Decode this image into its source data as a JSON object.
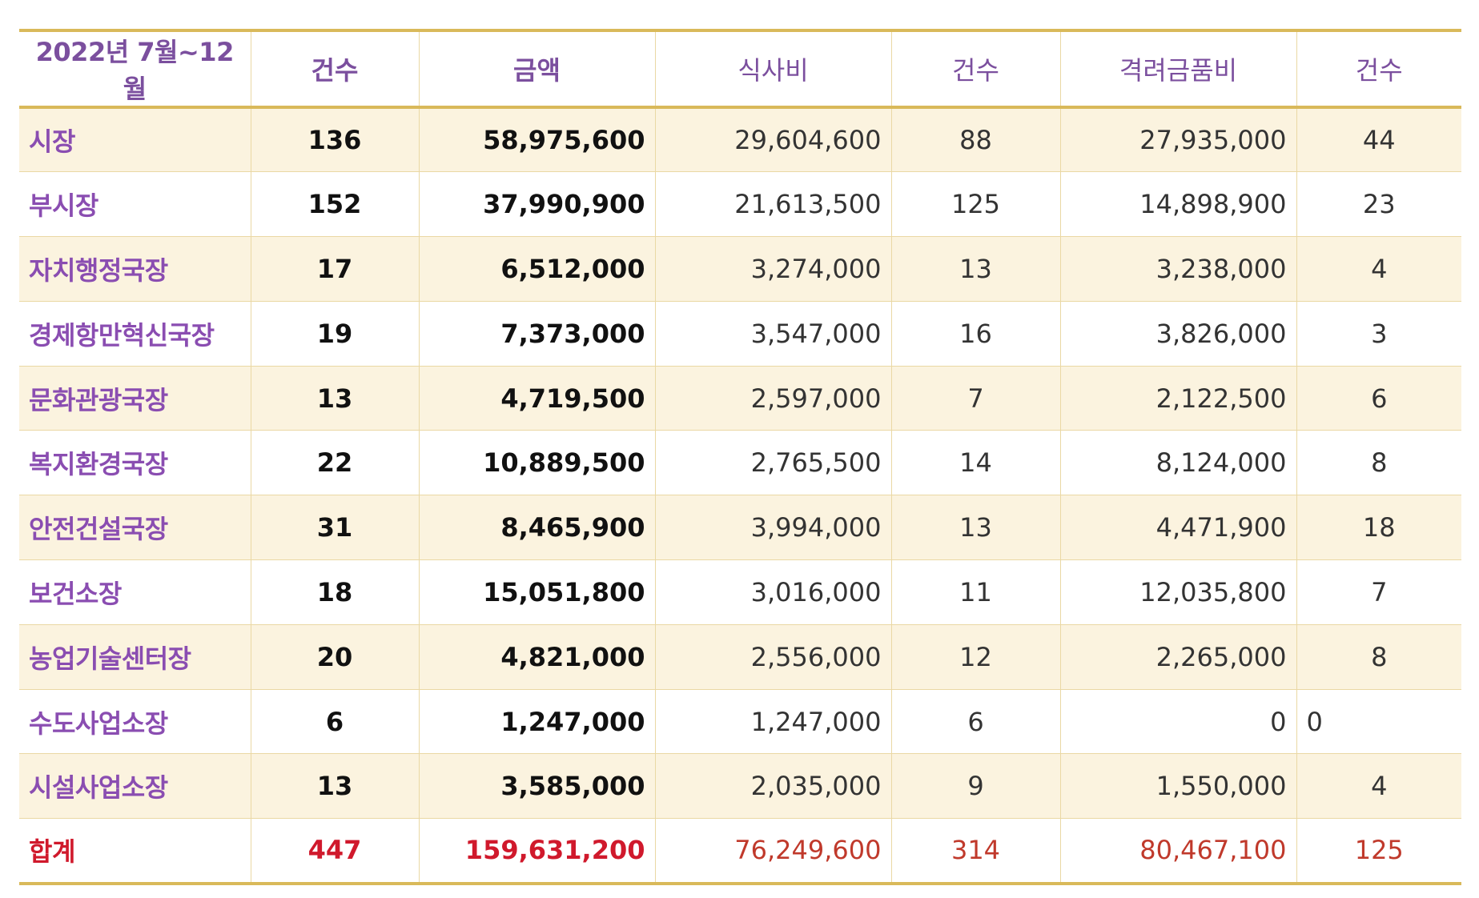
{
  "header": {
    "period": "2022년 7월~12월",
    "count1": "건수",
    "amount": "금액",
    "meal": "식사비",
    "count2": "건수",
    "gift": "격려금품비",
    "count3": "건수"
  },
  "rows": [
    {
      "name": "시장",
      "count": "136",
      "amount": "58,975,600",
      "meal": "29,604,600",
      "meal_count": "88",
      "gift": "27,935,000",
      "gift_count": "44"
    },
    {
      "name": "부시장",
      "count": "152",
      "amount": "37,990,900",
      "meal": "21,613,500",
      "meal_count": "125",
      "gift": "14,898,900",
      "gift_count": "23"
    },
    {
      "name": "자치행정국장",
      "count": "17",
      "amount": "6,512,000",
      "meal": "3,274,000",
      "meal_count": "13",
      "gift": "3,238,000",
      "gift_count": "4"
    },
    {
      "name": "경제항만혁신국장",
      "count": "19",
      "amount": "7,373,000",
      "meal": "3,547,000",
      "meal_count": "16",
      "gift": "3,826,000",
      "gift_count": "3"
    },
    {
      "name": "문화관광국장",
      "count": "13",
      "amount": "4,719,500",
      "meal": "2,597,000",
      "meal_count": "7",
      "gift": "2,122,500",
      "gift_count": "6"
    },
    {
      "name": "복지환경국장",
      "count": "22",
      "amount": "10,889,500",
      "meal": "2,765,500",
      "meal_count": "14",
      "gift": "8,124,000",
      "gift_count": "8"
    },
    {
      "name": "안전건설국장",
      "count": "31",
      "amount": "8,465,900",
      "meal": "3,994,000",
      "meal_count": "13",
      "gift": "4,471,900",
      "gift_count": "18"
    },
    {
      "name": "보건소장",
      "count": "18",
      "amount": "15,051,800",
      "meal": "3,016,000",
      "meal_count": "11",
      "gift": "12,035,800",
      "gift_count": "7"
    },
    {
      "name": "농업기술센터장",
      "count": "20",
      "amount": "4,821,000",
      "meal": "2,556,000",
      "meal_count": "12",
      "gift": "2,265,000",
      "gift_count": "8"
    },
    {
      "name": "수도사업소장",
      "count": "6",
      "amount": "1,247,000",
      "meal": "1,247,000",
      "meal_count": "6",
      "gift": "0",
      "gift_count": "0"
    },
    {
      "name": "시설사업소장",
      "count": "13",
      "amount": "3,585,000",
      "meal": "2,035,000",
      "meal_count": "9",
      "gift": "1,550,000",
      "gift_count": "4"
    }
  ],
  "total": {
    "name": "합계",
    "count": "447",
    "amount": "159,631,200",
    "meal": "76,249,600",
    "meal_count": "314",
    "gift": "80,467,100",
    "gift_count": "125"
  }
}
